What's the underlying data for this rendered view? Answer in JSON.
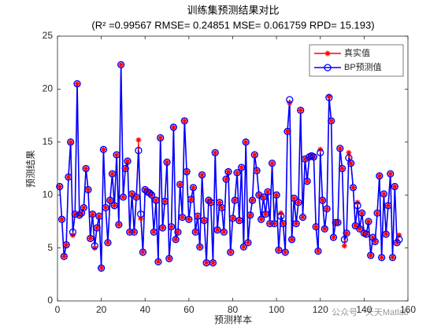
{
  "chart_data": {
    "type": "line",
    "title": "训练集预测结果对比",
    "subtitle": "(R² =0.99567 RMSE= 0.24851 MSE= 0.061759 RPD= 15.193)",
    "x_label": "预测样本",
    "y_label": "预测结果",
    "annotation": "公众号 · 天天Matlab",
    "xlim": [
      0,
      160
    ],
    "xticks": [
      0,
      20,
      40,
      60,
      80,
      100,
      120,
      140,
      160
    ],
    "ylim": [
      0,
      25
    ],
    "yticks": [
      0,
      5,
      10,
      15,
      20,
      25
    ],
    "legend_position": "upper right",
    "x": [
      1,
      2,
      3,
      4,
      5,
      6,
      7,
      8,
      9,
      10,
      11,
      12,
      13,
      14,
      15,
      16,
      17,
      18,
      19,
      20,
      21,
      22,
      23,
      24,
      25,
      26,
      27,
      28,
      29,
      30,
      31,
      32,
      33,
      34,
      35,
      36,
      37,
      38,
      39,
      40,
      41,
      42,
      43,
      44,
      45,
      46,
      47,
      48,
      49,
      50,
      51,
      52,
      53,
      54,
      55,
      56,
      57,
      58,
      59,
      60,
      61,
      62,
      63,
      64,
      65,
      66,
      67,
      68,
      69,
      70,
      71,
      72,
      73,
      74,
      75,
      76,
      77,
      78,
      79,
      80,
      81,
      82,
      83,
      84,
      85,
      86,
      87,
      88,
      89,
      90,
      91,
      92,
      93,
      94,
      95,
      96,
      97,
      98,
      99,
      100,
      101,
      102,
      103,
      104,
      105,
      106,
      107,
      108,
      109,
      110,
      111,
      112,
      113,
      114,
      115,
      116,
      117,
      118,
      119,
      120,
      121,
      122,
      123,
      124,
      125,
      126,
      127,
      128,
      129,
      130,
      131,
      132,
      133,
      134,
      135,
      136,
      137,
      138,
      139,
      140,
      141,
      142,
      143,
      144,
      145,
      146,
      147,
      148,
      149,
      150,
      151,
      152,
      153,
      154,
      155,
      156
    ],
    "series": [
      {
        "name": "真实值",
        "color": "#ff0000",
        "marker": "asterisk",
        "values": [
          10.8,
          7.7,
          4.2,
          5.3,
          11.7,
          15.0,
          6.2,
          8.2,
          20.5,
          8.1,
          8.3,
          8.8,
          12.5,
          10.5,
          5.9,
          8.2,
          5.0,
          6.9,
          8.0,
          3.1,
          14.3,
          8.8,
          5.5,
          9.5,
          12.0,
          9.0,
          13.8,
          7.2,
          22.3,
          9.8,
          12.5,
          13.2,
          6.5,
          10.1,
          6.5,
          9.8,
          15.2,
          7.8,
          4.6,
          10.5,
          10.3,
          10.2,
          10.0,
          6.5,
          9.5,
          3.7,
          15.4,
          6.9,
          9.4,
          13.1,
          4.0,
          7.0,
          16.4,
          5.8,
          6.5,
          11.0,
          7.9,
          17.0,
          12.2,
          7.7,
          9.6,
          10.7,
          6.5,
          8.0,
          5.1,
          11.9,
          7.6,
          3.6,
          9.5,
          9.3,
          3.6,
          14.0,
          6.7,
          9.3,
          8.8,
          6.5,
          11.5,
          12.2,
          4.6,
          7.8,
          9.5,
          12.1,
          7.6,
          12.6,
          5.1,
          15.0,
          5.5,
          8.1,
          9.5,
          13.8,
          12.3,
          10.0,
          7.7,
          9.8,
          8.2,
          10.3,
          7.3,
          13.0,
          7.3,
          10.0,
          4.8,
          8.3,
          7.3,
          4.6,
          16.0,
          18.7,
          5.8,
          9.7,
          7.3,
          9.3,
          18.0,
          7.9,
          13.4,
          11.3,
          13.6,
          13.7,
          13.6,
          7.0,
          4.7,
          14.3,
          9.5,
          6.8,
          8.7,
          19.3,
          17.0,
          6.0,
          7.4,
          7.4,
          14.4,
          12.5,
          5.2,
          6.4,
          14.0,
          13.0,
          10.7,
          7.1,
          9.3,
          6.8,
          8.3,
          6.4,
          6.3,
          7.5,
          4.3,
          6.0,
          5.6,
          8.3,
          11.8,
          4.1,
          10.1,
          6.3,
          9.0,
          12.0,
          4.1,
          10.8,
          5.5,
          6.2
        ]
      },
      {
        "name": "BP预测值",
        "color": "#0000ff",
        "marker": "circle",
        "values": [
          10.8,
          7.7,
          4.2,
          5.3,
          11.7,
          15.0,
          6.5,
          8.2,
          20.5,
          8.1,
          8.3,
          8.8,
          12.5,
          10.5,
          5.9,
          8.2,
          5.2,
          6.9,
          8.0,
          3.1,
          14.3,
          8.8,
          5.5,
          9.5,
          12.0,
          9.0,
          13.8,
          7.2,
          22.3,
          9.8,
          12.5,
          13.2,
          6.5,
          10.1,
          6.5,
          9.8,
          14.2,
          8.2,
          4.6,
          10.5,
          10.3,
          10.2,
          10.0,
          6.5,
          9.5,
          3.7,
          15.4,
          6.9,
          9.4,
          13.1,
          4.0,
          7.0,
          16.4,
          5.8,
          6.5,
          11.0,
          7.9,
          17.0,
          12.2,
          7.7,
          9.6,
          10.7,
          6.5,
          8.0,
          5.1,
          11.9,
          7.6,
          3.6,
          9.5,
          9.3,
          3.6,
          14.0,
          6.7,
          9.3,
          8.8,
          6.5,
          11.5,
          12.2,
          4.6,
          7.8,
          9.5,
          12.1,
          7.6,
          12.6,
          5.1,
          15.0,
          5.5,
          8.1,
          9.5,
          13.8,
          12.3,
          10.0,
          7.7,
          9.8,
          8.2,
          10.3,
          7.3,
          13.0,
          7.3,
          10.0,
          4.8,
          8.0,
          7.3,
          4.6,
          16.0,
          19.0,
          5.8,
          9.7,
          7.3,
          9.3,
          18.0,
          7.9,
          13.4,
          11.3,
          13.6,
          13.7,
          13.6,
          7.0,
          4.7,
          14.0,
          9.5,
          6.8,
          8.7,
          19.2,
          17.0,
          6.0,
          7.4,
          7.4,
          14.4,
          12.5,
          5.8,
          6.4,
          13.5,
          13.0,
          10.7,
          7.1,
          9.0,
          6.8,
          8.3,
          6.4,
          6.3,
          7.5,
          4.3,
          6.0,
          5.6,
          8.3,
          11.8,
          4.1,
          10.1,
          6.3,
          9.0,
          12.0,
          4.1,
          10.8,
          5.5,
          5.8
        ]
      }
    ]
  }
}
